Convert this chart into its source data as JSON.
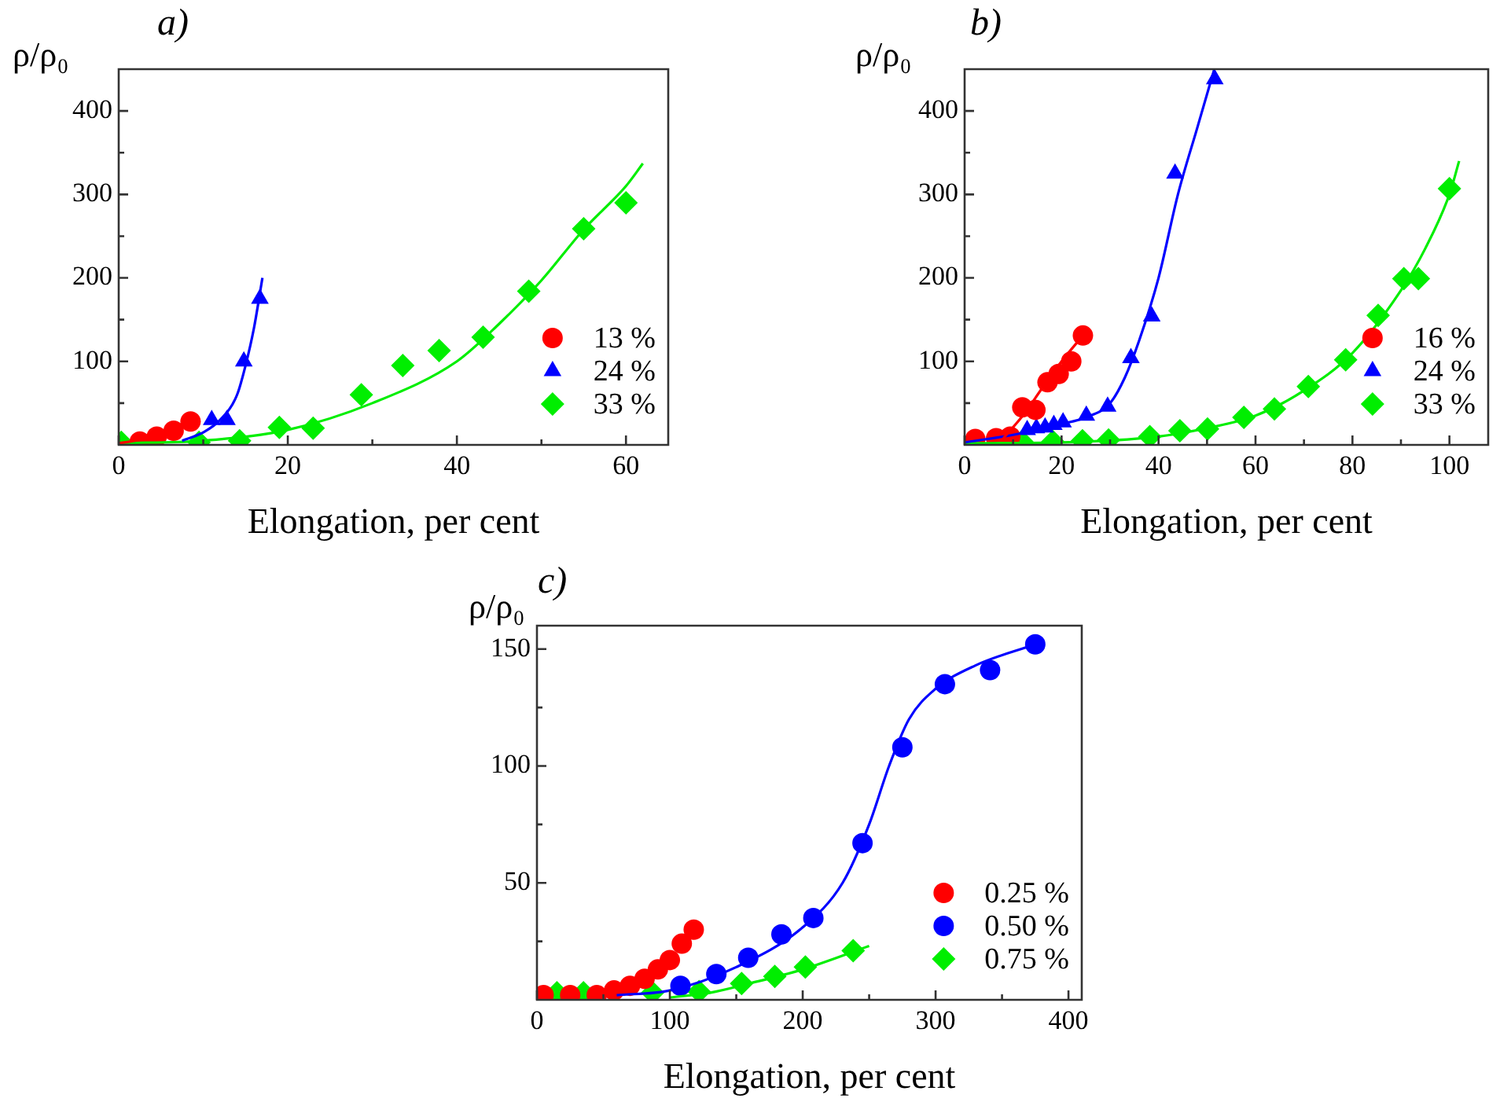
{
  "chart_data": [
    {
      "type": "scatter",
      "title": "a)",
      "xlabel": "Elongation, per cent",
      "ylabel": "ρ/ρ₀",
      "xlim": [
        0,
        65
      ],
      "ylim": [
        0,
        450
      ],
      "xticks": [
        0,
        {
          "value": 10,
          "label": null
        },
        20,
        {
          "value": 30,
          "label": null
        },
        40,
        {
          "value": 50,
          "label": null
        },
        60
      ],
      "yticks": [
        {
          "value": 50,
          "label": null
        },
        100,
        {
          "value": 150,
          "label": null
        },
        200,
        {
          "value": 250,
          "label": null
        },
        300,
        {
          "value": 350,
          "label": null
        },
        400
      ],
      "grid": false,
      "legend": "bottom right",
      "series": [
        {
          "name": "13 %",
          "type": "scatter",
          "marker": "circle",
          "color": "#ff0000",
          "x": [
            2.5,
            4.5,
            6.5,
            8.5
          ],
          "values": [
            4,
            10,
            17,
            28
          ]
        },
        {
          "name": "24 %",
          "type": "scatter",
          "marker": "triangle",
          "color": "#0000ff",
          "x": [
            11,
            12.8,
            14.8,
            16.7
          ],
          "values": [
            30,
            30,
            100,
            175
          ]
        },
        {
          "name": "33 %",
          "type": "scatter",
          "marker": "diamond",
          "color": "#00ee00",
          "x": [
            0.3,
            9.5,
            14.3,
            19,
            23,
            28.7,
            33.6,
            37.9,
            43.1,
            48.5,
            55,
            60
          ],
          "values": [
            3,
            3,
            5,
            21,
            20,
            60,
            95,
            113,
            129,
            184,
            259,
            290
          ]
        },
        {
          "type": "line",
          "marker": "none",
          "color": "#ff0000",
          "x": [
            0,
            3,
            6,
            9
          ],
          "values": [
            2,
            7,
            17,
            35
          ]
        },
        {
          "type": "line",
          "marker": "none",
          "color": "#0000ff",
          "x": [
            7.5,
            10,
            12,
            14,
            15,
            16,
            17
          ],
          "values": [
            5,
            15,
            30,
            60,
            95,
            140,
            200
          ]
        },
        {
          "type": "line",
          "marker": "none",
          "color": "#00ee00",
          "x": [
            0,
            10,
            20,
            30,
            40,
            45,
            50,
            55,
            60,
            62
          ],
          "values": [
            2,
            5,
            18,
            50,
            100,
            145,
            197,
            258,
            310,
            337
          ]
        }
      ]
    },
    {
      "type": "scatter",
      "title": "b)",
      "xlabel": "Elongation, per cent",
      "ylabel": "ρ/ρ₀",
      "xlim": [
        0,
        108
      ],
      "ylim": [
        0,
        450
      ],
      "xticks": [
        0,
        {
          "value": 10,
          "label": null
        },
        20,
        {
          "value": 30,
          "label": null
        },
        40,
        {
          "value": 50,
          "label": null
        },
        60,
        {
          "value": 70,
          "label": null
        },
        80,
        {
          "value": 90,
          "label": null
        },
        100
      ],
      "yticks": [
        {
          "value": 50,
          "label": null
        },
        100,
        {
          "value": 150,
          "label": null
        },
        200,
        {
          "value": 250,
          "label": null
        },
        300,
        {
          "value": 350,
          "label": null
        },
        400
      ],
      "grid": false,
      "legend": "bottom right",
      "series": [
        {
          "name": "16 %",
          "type": "scatter",
          "marker": "circle",
          "color": "#ff0000",
          "x": [
            2.2,
            6.5,
            9.4,
            11.9,
            14.6,
            17.1,
            19.4,
            22,
            24.4
          ],
          "values": [
            7,
            8,
            10,
            45,
            42,
            75,
            85,
            100,
            131
          ]
        },
        {
          "name": "24 %",
          "type": "scatter",
          "marker": "triangle",
          "color": "#0000ff",
          "x": [
            12.9,
            14.8,
            16.6,
            18.4,
            20.3,
            25.1,
            29.5,
            34.3,
            38.6,
            43.4,
            51.6
          ],
          "values": [
            18,
            20,
            21,
            24,
            27,
            35,
            46,
            104,
            154,
            325,
            438
          ]
        },
        {
          "name": "33 %",
          "type": "scatter",
          "marker": "diamond",
          "color": "#00ee00",
          "x": [
            11.8,
            18.2,
            24.3,
            29.7,
            38.2,
            44.4,
            50.1,
            57.6,
            63.9,
            70.9,
            78.6,
            85.3,
            90.6,
            93.6,
            100
          ],
          "values": [
            4,
            4,
            5,
            6,
            10,
            17,
            19,
            33,
            43,
            70,
            102,
            155,
            199,
            199,
            307
          ]
        },
        {
          "type": "line",
          "marker": "none",
          "color": "#ff0000",
          "x": [
            8,
            12,
            16,
            20,
            24.4
          ],
          "values": [
            8,
            35,
            68,
            100,
            131
          ]
        },
        {
          "type": "line",
          "marker": "none",
          "color": "#0000ff",
          "x": [
            0,
            10,
            20,
            25,
            30,
            33,
            36,
            40,
            44,
            48,
            51.5
          ],
          "values": [
            3,
            12,
            25,
            33,
            50,
            80,
            125,
            200,
            300,
            380,
            450
          ]
        },
        {
          "type": "line",
          "marker": "none",
          "color": "#00ee00",
          "x": [
            0,
            20,
            40,
            50,
            60,
            70,
            80,
            90,
            95,
            100,
            102
          ],
          "values": [
            2,
            3,
            10,
            20,
            35,
            65,
            110,
            185,
            235,
            300,
            340
          ]
        }
      ]
    },
    {
      "type": "scatter",
      "title": "c)",
      "xlabel": "Elongation, per cent",
      "ylabel": "ρ/ρ₀",
      "xlim": [
        0,
        410
      ],
      "ylim": [
        0,
        160
      ],
      "xticks": [
        0,
        {
          "value": 50,
          "label": null
        },
        100,
        {
          "value": 150,
          "label": null
        },
        200,
        {
          "value": 250,
          "label": null
        },
        300,
        {
          "value": 350,
          "label": null
        },
        400
      ],
      "yticks": [
        {
          "value": 25,
          "label": null
        },
        50,
        {
          "value": 75,
          "label": null
        },
        100,
        {
          "value": 125,
          "label": null
        },
        150
      ],
      "grid": false,
      "legend": "bottom right",
      "series": [
        {
          "name": "0.25 %",
          "type": "scatter",
          "marker": "circle",
          "color": "#ff0000",
          "x": [
            5,
            25,
            45,
            58,
            70,
            81,
            91,
            100,
            109,
            118
          ],
          "values": [
            2,
            2,
            2,
            4,
            6,
            9,
            13,
            17,
            24,
            30
          ]
        },
        {
          "name": "0.50 %",
          "type": "scatter",
          "marker": "circle",
          "color": "#0000ff",
          "x": [
            108,
            135,
            159,
            184,
            208,
            245,
            275,
            307,
            341,
            375
          ],
          "values": [
            6,
            11,
            18,
            28,
            35,
            67,
            108,
            135,
            141,
            152
          ]
        },
        {
          "name": "0.75 %",
          "type": "scatter",
          "marker": "diamond",
          "color": "#00ee00",
          "x": [
            15,
            35,
            87,
            122,
            154,
            179,
            202,
            238
          ],
          "values": [
            3,
            3,
            3,
            3.5,
            7,
            10,
            14,
            21
          ]
        },
        {
          "type": "line",
          "marker": "none",
          "color": "#0000ff",
          "x": [
            60,
            100,
            150,
            200,
            230,
            250,
            265,
            280,
            300,
            330,
            375
          ],
          "values": [
            2,
            4,
            14,
            31,
            50,
            75,
            100,
            120,
            133,
            143,
            152
          ]
        },
        {
          "type": "line",
          "marker": "none",
          "color": "#00ee00",
          "x": [
            100,
            130,
            160,
            200,
            250
          ],
          "values": [
            1,
            3,
            7,
            13,
            23
          ]
        }
      ]
    }
  ]
}
